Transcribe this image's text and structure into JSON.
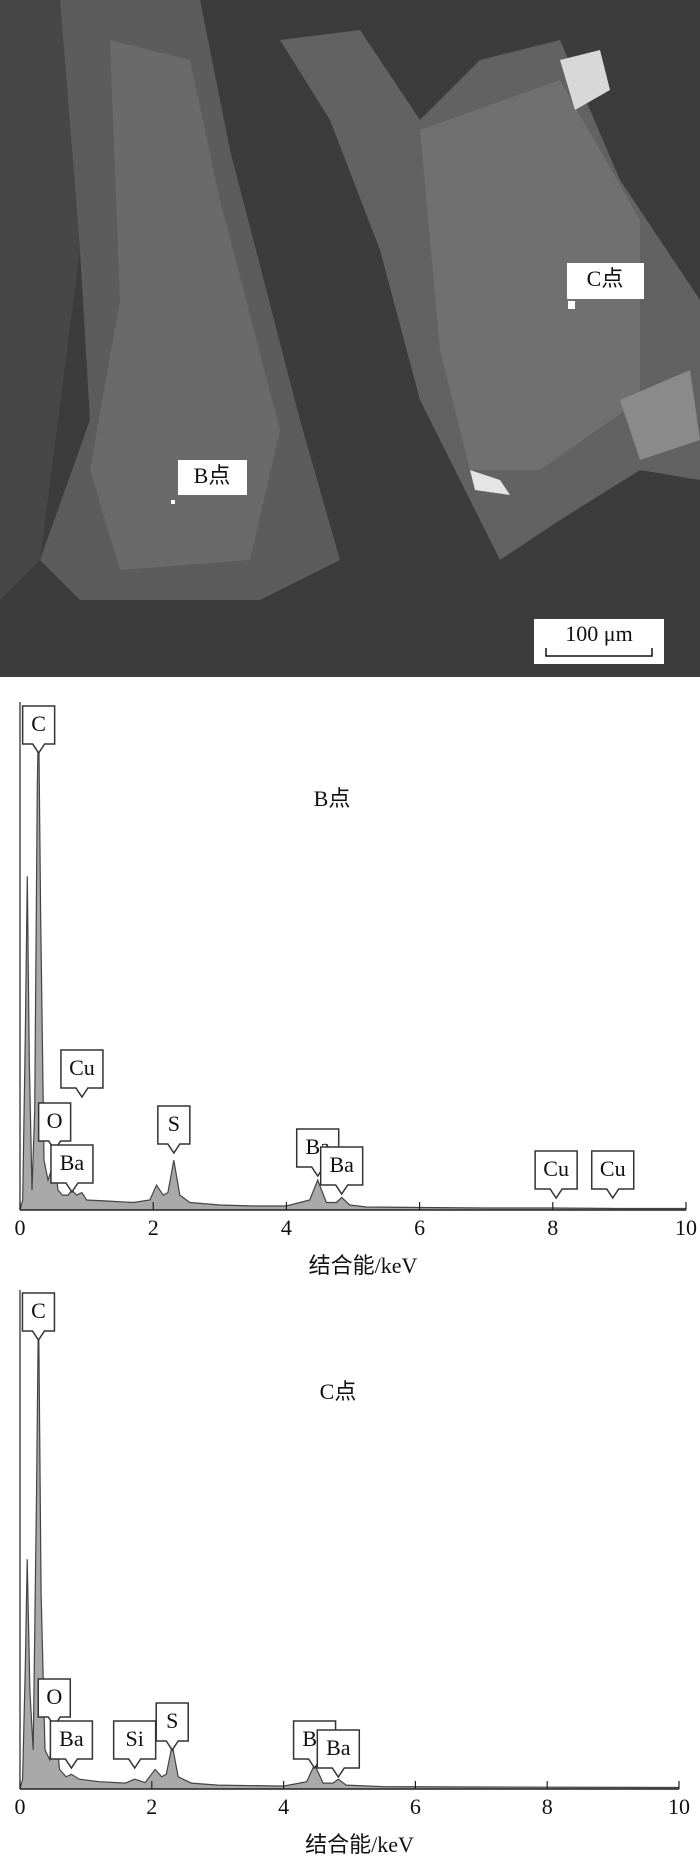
{
  "image": {
    "labels": [
      "B点",
      "C点"
    ],
    "scale_bar": "100 μm"
  },
  "chart_data": [
    {
      "type": "area",
      "title": "B点",
      "xlabel": "结合能/keV",
      "color": "#8c8c8c",
      "xlim": [
        0,
        10
      ],
      "xticks": [
        0,
        2,
        4,
        6,
        8,
        10
      ],
      "ylim": [
        0,
        100
      ],
      "x": [
        0,
        0.04,
        0.08,
        0.11,
        0.14,
        0.18,
        0.22,
        0.26,
        0.28,
        0.31,
        0.36,
        0.42,
        0.47,
        0.52,
        0.57,
        0.64,
        0.72,
        0.78,
        0.85,
        0.93,
        1.0,
        1.3,
        1.7,
        1.95,
        2.05,
        2.15,
        2.22,
        2.31,
        2.4,
        2.55,
        3.0,
        3.5,
        4.0,
        4.35,
        4.47,
        4.6,
        4.75,
        4.83,
        4.95,
        5.2,
        6.0,
        7.0,
        8.0,
        9.0,
        10.0
      ],
      "values": [
        0,
        2,
        35,
        67,
        30,
        4,
        20,
        85,
        100,
        60,
        10,
        6,
        8,
        10,
        4,
        3,
        3,
        4,
        3,
        3.5,
        2,
        1.8,
        1.5,
        2,
        5,
        3,
        3.5,
        10,
        3,
        1.5,
        1,
        0.8,
        0.8,
        2,
        6,
        1.5,
        1.5,
        2.5,
        1,
        0.6,
        0.5,
        0.4,
        0.4,
        0.3,
        0.3
      ],
      "annotations": [
        {
          "label": "C",
          "x": 0.28
        },
        {
          "label": "O",
          "x": 0.52
        },
        {
          "label": "Cu",
          "x": 0.93
        },
        {
          "label": "Ba",
          "x": 0.78
        },
        {
          "label": "S",
          "x": 2.31
        },
        {
          "label": "Ba",
          "x": 4.47
        },
        {
          "label": "Ba",
          "x": 4.83
        },
        {
          "label": "Cu",
          "x": 8.05
        },
        {
          "label": "Cu",
          "x": 8.9
        }
      ]
    },
    {
      "type": "area",
      "title": "C点",
      "xlabel": "结合能/keV",
      "color": "#8c8c8c",
      "xlim": [
        0,
        10
      ],
      "xticks": [
        0,
        2,
        4,
        6,
        8,
        10
      ],
      "ylim": [
        0,
        100
      ],
      "x": [
        0,
        0.04,
        0.08,
        0.11,
        0.15,
        0.2,
        0.25,
        0.28,
        0.32,
        0.38,
        0.45,
        0.52,
        0.6,
        0.7,
        0.78,
        0.9,
        1.2,
        1.6,
        1.74,
        1.9,
        2.05,
        2.15,
        2.22,
        2.31,
        2.4,
        2.6,
        3.0,
        4.0,
        4.35,
        4.47,
        4.6,
        4.75,
        4.83,
        4.95,
        5.5,
        7.0,
        10.0
      ],
      "values": [
        0,
        2,
        25,
        47,
        20,
        8,
        60,
        100,
        40,
        8,
        6,
        16,
        4,
        2.5,
        3,
        2,
        1.5,
        1.2,
        2,
        1.3,
        4,
        2.5,
        3,
        9,
        2.5,
        1.2,
        0.8,
        0.6,
        1.5,
        5,
        1.2,
        1.2,
        2,
        0.8,
        0.5,
        0.4,
        0.3
      ],
      "annotations": [
        {
          "label": "C",
          "x": 0.28
        },
        {
          "label": "O",
          "x": 0.52
        },
        {
          "label": "Ba",
          "x": 0.78
        },
        {
          "label": "Si",
          "x": 1.74
        },
        {
          "label": "S",
          "x": 2.31
        },
        {
          "label": "Ba",
          "x": 4.47
        },
        {
          "label": "Ba",
          "x": 4.83
        }
      ]
    }
  ]
}
